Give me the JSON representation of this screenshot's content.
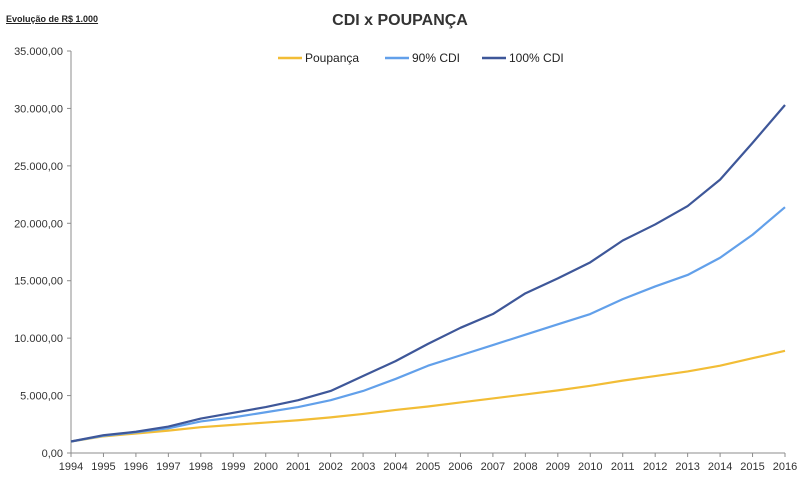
{
  "chart_data": {
    "type": "line",
    "title": "CDI x POUPANÇA",
    "note": "Evolução de R$ 1.000",
    "xlabel": "",
    "ylabel": "",
    "x": [
      1994,
      1995,
      1996,
      1997,
      1998,
      1999,
      2000,
      2001,
      2002,
      2003,
      2004,
      2005,
      2006,
      2007,
      2008,
      2009,
      2010,
      2011,
      2012,
      2013,
      2014,
      2015,
      2016
    ],
    "x_tick_labels": [
      "1994",
      "1995",
      "1996",
      "1997",
      "1998",
      "1999",
      "2000",
      "2001",
      "2002",
      "2003",
      "2004",
      "2005",
      "2006",
      "2007",
      "2008",
      "2009",
      "2010",
      "2011",
      "2012",
      "2013",
      "2014",
      "2015",
      "2016"
    ],
    "ylim": [
      0,
      35000
    ],
    "y_ticks": [
      0,
      5000,
      10000,
      15000,
      20000,
      25000,
      30000,
      35000
    ],
    "y_tick_labels": [
      "0,00",
      "5.000,00",
      "10.000,00",
      "15.000,00",
      "20.000,00",
      "25.000,00",
      "30.000,00",
      "35.000,00"
    ],
    "grid": false,
    "legend_position": "top-center",
    "series": [
      {
        "name": "Poupança",
        "color": "#f2bd36",
        "values": [
          1000,
          1450,
          1700,
          1950,
          2250,
          2450,
          2650,
          2850,
          3100,
          3400,
          3750,
          4050,
          4400,
          4750,
          5100,
          5450,
          5850,
          6300,
          6700,
          7100,
          7600,
          8250,
          8900
        ]
      },
      {
        "name": "90% CDI",
        "color": "#62a0ea",
        "values": [
          1000,
          1500,
          1800,
          2150,
          2750,
          3100,
          3550,
          4000,
          4600,
          5400,
          6450,
          7600,
          8500,
          9400,
          10300,
          11200,
          12100,
          13400,
          14500,
          15500,
          17000,
          19000,
          21400
        ]
      },
      {
        "name": "100% CDI",
        "color": "#3e5799",
        "values": [
          1000,
          1550,
          1850,
          2300,
          3000,
          3500,
          4000,
          4600,
          5400,
          6700,
          8000,
          9500,
          10900,
          12100,
          13900,
          15200,
          16600,
          18500,
          19900,
          21500,
          23800,
          27000,
          30300
        ]
      }
    ]
  }
}
